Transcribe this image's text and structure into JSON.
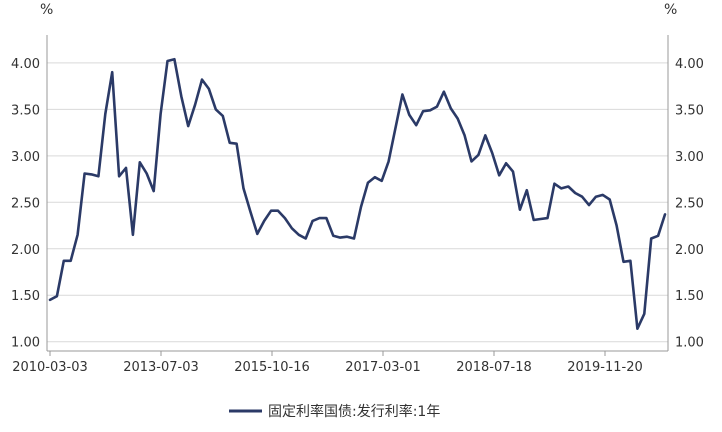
{
  "chart_data": {
    "type": "line",
    "y_unit_left": "%",
    "y_unit_right": "%",
    "ylim": [
      0.9,
      4.3
    ],
    "y_ticks": [
      "1.00",
      "1.50",
      "2.00",
      "2.50",
      "3.00",
      "3.50",
      "4.00"
    ],
    "x_tick_labels": [
      "2010-03-03",
      "2013-07-03",
      "2015-10-16",
      "2017-03-01",
      "2018-07-18",
      "2019-11-20"
    ],
    "grid": true,
    "legend_position": "bottom",
    "series": [
      {
        "name": "固定利率国债:发行利率:1年",
        "color": "#2b3a67",
        "values": [
          1.45,
          1.49,
          1.87,
          1.87,
          2.15,
          2.81,
          2.8,
          2.78,
          3.45,
          3.9,
          2.78,
          2.87,
          2.15,
          2.93,
          2.81,
          2.62,
          3.45,
          4.02,
          4.04,
          3.64,
          3.32,
          3.55,
          3.82,
          3.72,
          3.5,
          3.43,
          3.14,
          3.13,
          2.65,
          2.4,
          2.16,
          2.3,
          2.41,
          2.41,
          2.33,
          2.22,
          2.15,
          2.11,
          2.3,
          2.33,
          2.33,
          2.14,
          2.12,
          2.13,
          2.11,
          2.45,
          2.71,
          2.77,
          2.73,
          2.94,
          3.3,
          3.66,
          3.44,
          3.33,
          3.48,
          3.49,
          3.53,
          3.69,
          3.51,
          3.4,
          3.22,
          2.94,
          3.01,
          3.22,
          3.03,
          2.79,
          2.92,
          2.83,
          2.42,
          2.63,
          2.31,
          2.32,
          2.33,
          2.7,
          2.65,
          2.67,
          2.6,
          2.56,
          2.47,
          2.56,
          2.58,
          2.53,
          2.25,
          1.86,
          1.87,
          1.14,
          1.3,
          2.11,
          2.14,
          2.37
        ]
      }
    ]
  }
}
